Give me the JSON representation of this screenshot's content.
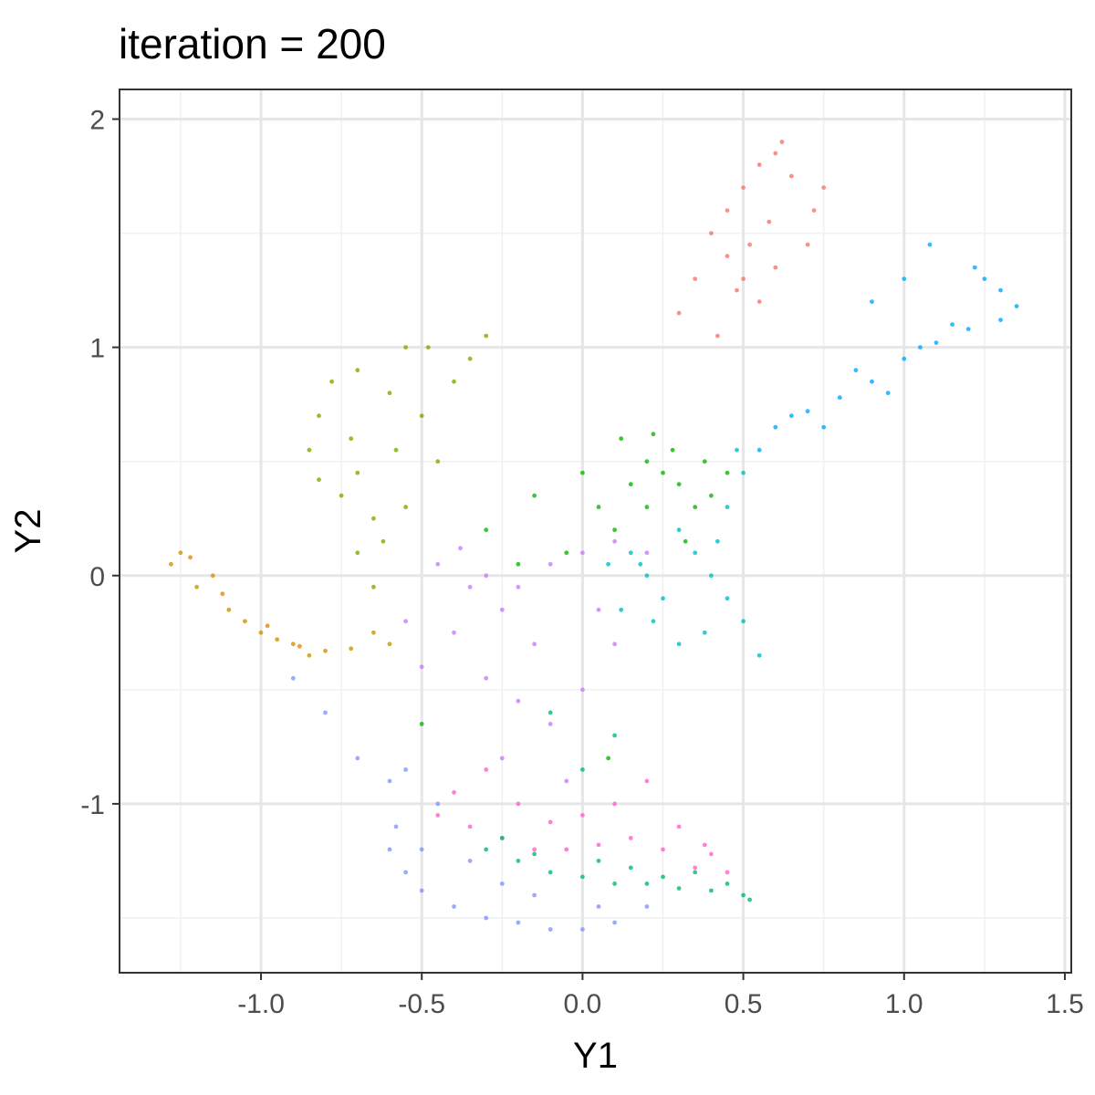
{
  "chart_data": {
    "type": "scatter",
    "title": "iteration =  200",
    "xlabel": "Y1",
    "ylabel": "Y2",
    "xlim": [
      -1.44,
      1.52
    ],
    "ylim": [
      -1.74,
      2.13
    ],
    "x_ticks": [
      -1.0,
      -0.5,
      0.0,
      0.5,
      1.0,
      1.5
    ],
    "x_tick_labels": [
      "-1.0",
      "-0.5",
      "0.0",
      "0.5",
      "1.0",
      "1.5"
    ],
    "y_ticks": [
      -1,
      0,
      1,
      2
    ],
    "y_tick_labels": [
      "-1",
      "0",
      "1",
      "2"
    ],
    "grid": true,
    "legend": "none",
    "series": [
      {
        "color": "#F8766D",
        "points": [
          [
            0.62,
            1.9
          ],
          [
            0.6,
            1.85
          ],
          [
            0.55,
            1.8
          ],
          [
            0.5,
            1.7
          ],
          [
            0.45,
            1.6
          ],
          [
            0.4,
            1.5
          ],
          [
            0.45,
            1.4
          ],
          [
            0.5,
            1.3
          ],
          [
            0.55,
            1.2
          ],
          [
            0.6,
            1.35
          ],
          [
            0.7,
            1.45
          ],
          [
            0.72,
            1.6
          ],
          [
            0.35,
            1.3
          ],
          [
            0.3,
            1.15
          ],
          [
            0.65,
            1.75
          ],
          [
            0.58,
            1.55
          ],
          [
            0.48,
            1.25
          ],
          [
            0.42,
            1.05
          ],
          [
            0.75,
            1.7
          ],
          [
            0.52,
            1.45
          ]
        ]
      },
      {
        "color": "#CD9600",
        "points": [
          [
            -1.28,
            0.05
          ],
          [
            -1.2,
            -0.05
          ],
          [
            -1.1,
            -0.15
          ],
          [
            -1.0,
            -0.25
          ],
          [
            -0.9,
            -0.3
          ],
          [
            -0.8,
            -0.33
          ],
          [
            -0.72,
            -0.32
          ],
          [
            -1.25,
            0.1
          ],
          [
            -1.15,
            0.0
          ],
          [
            -1.05,
            -0.2
          ],
          [
            -0.95,
            -0.28
          ],
          [
            -0.85,
            -0.35
          ],
          [
            -0.65,
            -0.25
          ],
          [
            -0.6,
            -0.3
          ]
        ]
      },
      {
        "color": "#7CAE00",
        "points": [
          [
            -0.78,
            0.85
          ],
          [
            -0.82,
            0.7
          ],
          [
            -0.85,
            0.55
          ],
          [
            -0.82,
            0.42
          ],
          [
            -0.75,
            0.35
          ],
          [
            -0.7,
            0.45
          ],
          [
            -0.72,
            0.6
          ],
          [
            -0.7,
            0.9
          ],
          [
            -0.6,
            0.8
          ],
          [
            -0.5,
            0.7
          ],
          [
            -0.45,
            0.5
          ],
          [
            -0.55,
            0.3
          ],
          [
            -0.62,
            0.15
          ],
          [
            -0.7,
            0.1
          ],
          [
            -0.65,
            -0.05
          ],
          [
            -0.4,
            0.85
          ],
          [
            -0.35,
            0.95
          ],
          [
            -0.55,
            1.0
          ],
          [
            -0.58,
            0.55
          ],
          [
            -0.65,
            0.25
          ],
          [
            -0.48,
            1.0
          ],
          [
            -0.3,
            1.05
          ]
        ]
      },
      {
        "color": "#0CB702",
        "points": [
          [
            0.15,
            0.4
          ],
          [
            0.2,
            0.5
          ],
          [
            0.25,
            0.45
          ],
          [
            0.3,
            0.4
          ],
          [
            0.35,
            0.3
          ],
          [
            0.4,
            0.35
          ],
          [
            0.1,
            0.2
          ],
          [
            0.05,
            0.3
          ],
          [
            0.2,
            0.3
          ],
          [
            0.28,
            0.55
          ],
          [
            0.38,
            0.5
          ],
          [
            -0.05,
            0.1
          ],
          [
            -0.2,
            0.05
          ],
          [
            0.0,
            0.45
          ],
          [
            0.12,
            0.6
          ],
          [
            -0.15,
            0.35
          ],
          [
            -0.3,
            0.2
          ],
          [
            0.32,
            0.15
          ],
          [
            0.45,
            0.45
          ],
          [
            0.22,
            0.62
          ],
          [
            -0.5,
            -0.65
          ],
          [
            0.08,
            -0.8
          ]
        ]
      },
      {
        "color": "#00BFC4",
        "points": [
          [
            0.3,
            0.2
          ],
          [
            0.35,
            0.1
          ],
          [
            0.4,
            0.0
          ],
          [
            0.45,
            -0.1
          ],
          [
            0.38,
            -0.25
          ],
          [
            0.3,
            -0.3
          ],
          [
            0.25,
            -0.1
          ],
          [
            0.2,
            0.0
          ],
          [
            0.15,
            0.1
          ],
          [
            0.45,
            0.3
          ],
          [
            0.5,
            0.45
          ],
          [
            0.48,
            0.55
          ],
          [
            0.42,
            0.15
          ],
          [
            0.5,
            -0.2
          ],
          [
            0.55,
            -0.35
          ],
          [
            0.22,
            -0.2
          ],
          [
            0.18,
            0.05
          ],
          [
            0.08,
            0.05
          ],
          [
            0.12,
            -0.15
          ]
        ]
      },
      {
        "color": "#00A9FF",
        "points": [
          [
            0.6,
            0.65
          ],
          [
            0.7,
            0.72
          ],
          [
            0.8,
            0.78
          ],
          [
            0.9,
            0.85
          ],
          [
            1.0,
            0.95
          ],
          [
            1.1,
            1.02
          ],
          [
            1.2,
            1.08
          ],
          [
            1.3,
            1.12
          ],
          [
            1.35,
            1.18
          ],
          [
            1.3,
            1.25
          ],
          [
            1.25,
            1.3
          ],
          [
            0.85,
            0.9
          ],
          [
            0.95,
            0.8
          ],
          [
            1.05,
            1.0
          ],
          [
            1.15,
            1.1
          ],
          [
            1.0,
            1.3
          ],
          [
            0.9,
            1.2
          ],
          [
            0.75,
            0.65
          ],
          [
            0.55,
            0.55
          ],
          [
            0.65,
            0.7
          ],
          [
            1.22,
            1.35
          ],
          [
            1.08,
            1.45
          ]
        ]
      },
      {
        "color": "#8494FF",
        "points": [
          [
            -0.6,
            -1.2
          ],
          [
            -0.55,
            -1.3
          ],
          [
            -0.5,
            -1.38
          ],
          [
            -0.4,
            -1.45
          ],
          [
            -0.3,
            -1.5
          ],
          [
            -0.2,
            -1.52
          ],
          [
            -0.1,
            -1.55
          ],
          [
            0.0,
            -1.55
          ],
          [
            0.1,
            -1.52
          ],
          [
            0.2,
            -1.45
          ],
          [
            -0.58,
            -1.1
          ],
          [
            -0.5,
            -1.2
          ],
          [
            -0.45,
            -1.0
          ],
          [
            -0.6,
            -0.9
          ],
          [
            -0.7,
            -0.8
          ],
          [
            -0.8,
            -0.6
          ],
          [
            -0.9,
            -0.45
          ],
          [
            -0.55,
            -0.85
          ],
          [
            -0.35,
            -1.25
          ],
          [
            -0.15,
            -1.4
          ],
          [
            0.05,
            -1.45
          ],
          [
            -0.25,
            -1.35
          ]
        ]
      },
      {
        "color": "#E68613",
        "points": [
          [
            -1.22,
            0.08
          ],
          [
            -1.12,
            -0.08
          ],
          [
            -0.98,
            -0.22
          ],
          [
            -0.88,
            -0.31
          ]
        ]
      },
      {
        "color": "#C77CFF",
        "points": [
          [
            -0.3,
            0.0
          ],
          [
            -0.2,
            -0.05
          ],
          [
            -0.1,
            0.05
          ],
          [
            0.0,
            0.1
          ],
          [
            0.1,
            0.15
          ],
          [
            0.2,
            0.1
          ],
          [
            -0.25,
            -0.15
          ],
          [
            -0.35,
            -0.05
          ],
          [
            -0.4,
            -0.25
          ],
          [
            -0.3,
            -0.45
          ],
          [
            -0.2,
            -0.55
          ],
          [
            -0.1,
            -0.65
          ],
          [
            0.0,
            -0.5
          ],
          [
            0.1,
            -0.3
          ],
          [
            -0.45,
            0.05
          ],
          [
            -0.38,
            0.12
          ],
          [
            -0.15,
            -0.3
          ],
          [
            0.05,
            -0.15
          ],
          [
            -0.5,
            -0.4
          ],
          [
            -0.55,
            -0.2
          ],
          [
            -0.25,
            -0.8
          ],
          [
            -0.05,
            -0.9
          ]
        ]
      },
      {
        "color": "#FF61CC",
        "points": [
          [
            -0.45,
            -1.05
          ],
          [
            -0.35,
            -1.1
          ],
          [
            -0.25,
            -1.15
          ],
          [
            -0.15,
            -1.2
          ],
          [
            -0.05,
            -1.2
          ],
          [
            0.05,
            -1.18
          ],
          [
            0.15,
            -1.15
          ],
          [
            0.25,
            -1.2
          ],
          [
            0.35,
            -1.28
          ],
          [
            0.45,
            -1.3
          ],
          [
            -0.4,
            -0.95
          ],
          [
            -0.2,
            -1.0
          ],
          [
            0.0,
            -1.05
          ],
          [
            0.1,
            -1.0
          ],
          [
            0.3,
            -1.1
          ],
          [
            0.4,
            -1.22
          ],
          [
            -0.3,
            -0.85
          ],
          [
            0.2,
            -0.9
          ],
          [
            0.38,
            -1.18
          ],
          [
            -0.1,
            -1.08
          ]
        ]
      },
      {
        "color": "#00BE67",
        "points": [
          [
            -0.3,
            -1.2
          ],
          [
            -0.2,
            -1.25
          ],
          [
            -0.1,
            -1.3
          ],
          [
            0.0,
            -1.32
          ],
          [
            0.1,
            -1.35
          ],
          [
            0.2,
            -1.35
          ],
          [
            0.3,
            -1.37
          ],
          [
            0.4,
            -1.38
          ],
          [
            0.5,
            -1.4
          ],
          [
            0.52,
            -1.42
          ],
          [
            0.45,
            -1.35
          ],
          [
            0.35,
            -1.3
          ],
          [
            -0.25,
            -1.15
          ],
          [
            0.05,
            -1.25
          ],
          [
            0.15,
            -1.28
          ],
          [
            0.25,
            -1.32
          ],
          [
            -0.15,
            -1.22
          ],
          [
            0.0,
            -0.85
          ],
          [
            0.1,
            -0.7
          ],
          [
            -0.1,
            -0.6
          ]
        ]
      }
    ]
  }
}
